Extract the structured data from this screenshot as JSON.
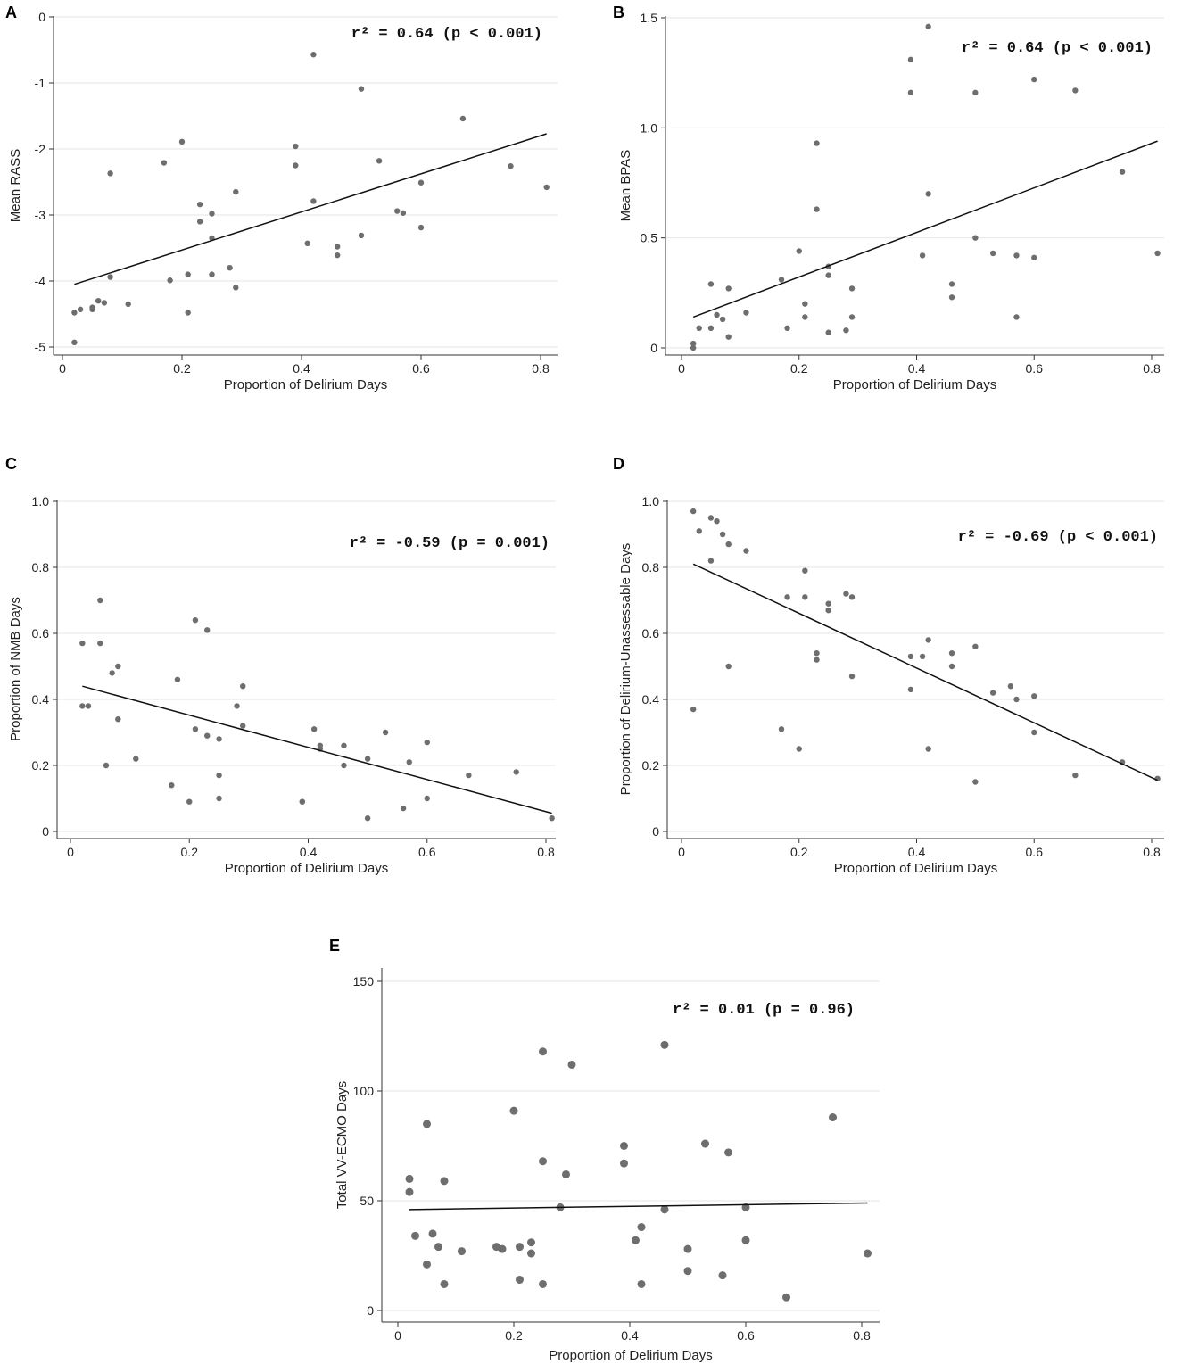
{
  "chart_data": [
    {
      "panel": "A",
      "type": "scatter",
      "xlabel": "Proportion of Delirium Days",
      "ylabel": "Mean RASS",
      "xlim": [
        0,
        0.8
      ],
      "ylim": [
        -5,
        0
      ],
      "xticks": [
        "0",
        "0.2",
        "0.4",
        "0.6",
        "0.8"
      ],
      "yticks": [
        "-5",
        "-4",
        "-3",
        "-2",
        "-1",
        "0"
      ],
      "annotation": "r² = 0.64 (p < 0.001)",
      "grid": true,
      "fit": {
        "x": [
          0.02,
          0.81
        ],
        "y": [
          -4.05,
          -1.77
        ]
      },
      "points": [
        [
          0.02,
          -4.93
        ],
        [
          0.02,
          -4.48
        ],
        [
          0.03,
          -4.43
        ],
        [
          0.05,
          -4.4
        ],
        [
          0.05,
          -4.43
        ],
        [
          0.06,
          -4.3
        ],
        [
          0.07,
          -4.33
        ],
        [
          0.08,
          -3.94
        ],
        [
          0.08,
          -2.37
        ],
        [
          0.11,
          -4.35
        ],
        [
          0.17,
          -2.21
        ],
        [
          0.18,
          -3.99
        ],
        [
          0.2,
          -1.89
        ],
        [
          0.21,
          -4.48
        ],
        [
          0.21,
          -3.9
        ],
        [
          0.23,
          -2.84
        ],
        [
          0.23,
          -3.1
        ],
        [
          0.25,
          -3.35
        ],
        [
          0.25,
          -2.98
        ],
        [
          0.25,
          -3.9
        ],
        [
          0.28,
          -3.8
        ],
        [
          0.29,
          -2.65
        ],
        [
          0.29,
          -4.1
        ],
        [
          0.39,
          -1.96
        ],
        [
          0.39,
          -2.25
        ],
        [
          0.41,
          -3.43
        ],
        [
          0.42,
          -0.57
        ],
        [
          0.42,
          -2.79
        ],
        [
          0.46,
          -3.48
        ],
        [
          0.46,
          -3.61
        ],
        [
          0.5,
          -1.09
        ],
        [
          0.5,
          -3.31
        ],
        [
          0.53,
          -2.18
        ],
        [
          0.56,
          -2.94
        ],
        [
          0.57,
          -2.97
        ],
        [
          0.6,
          -2.51
        ],
        [
          0.6,
          -3.19
        ],
        [
          0.67,
          -1.54
        ],
        [
          0.75,
          -2.26
        ],
        [
          0.81,
          -2.58
        ]
      ]
    },
    {
      "panel": "B",
      "type": "scatter",
      "xlabel": "Proportion of Delirium Days",
      "ylabel": "Mean BPAS",
      "xlim": [
        0,
        0.8
      ],
      "ylim": [
        0,
        1.5
      ],
      "xticks": [
        "0",
        "0.2",
        "0.4",
        "0.6",
        "0.8"
      ],
      "yticks": [
        "0",
        "0.5",
        "1.0",
        "1.5"
      ],
      "annotation": "r² = 0.64 (p < 0.001)",
      "grid": true,
      "fit": {
        "x": [
          0.02,
          0.81
        ],
        "y": [
          0.14,
          0.94
        ]
      },
      "points": [
        [
          0.02,
          0.02
        ],
        [
          0.02,
          0.0
        ],
        [
          0.03,
          0.09
        ],
        [
          0.05,
          0.09
        ],
        [
          0.05,
          0.29
        ],
        [
          0.06,
          0.15
        ],
        [
          0.07,
          0.13
        ],
        [
          0.08,
          0.27
        ],
        [
          0.08,
          0.05
        ],
        [
          0.11,
          0.16
        ],
        [
          0.17,
          0.31
        ],
        [
          0.18,
          0.09
        ],
        [
          0.2,
          0.44
        ],
        [
          0.21,
          0.2
        ],
        [
          0.21,
          0.14
        ],
        [
          0.23,
          0.63
        ],
        [
          0.23,
          0.93
        ],
        [
          0.25,
          0.37
        ],
        [
          0.25,
          0.33
        ],
        [
          0.25,
          0.07
        ],
        [
          0.28,
          0.08
        ],
        [
          0.29,
          0.27
        ],
        [
          0.29,
          0.14
        ],
        [
          0.39,
          1.31
        ],
        [
          0.39,
          1.16
        ],
        [
          0.41,
          0.42
        ],
        [
          0.42,
          1.46
        ],
        [
          0.42,
          0.7
        ],
        [
          0.46,
          0.29
        ],
        [
          0.46,
          0.23
        ],
        [
          0.5,
          1.16
        ],
        [
          0.5,
          0.5
        ],
        [
          0.53,
          0.43
        ],
        [
          0.57,
          0.14
        ],
        [
          0.57,
          0.42
        ],
        [
          0.6,
          1.22
        ],
        [
          0.6,
          0.41
        ],
        [
          0.67,
          1.17
        ],
        [
          0.75,
          0.8
        ],
        [
          0.81,
          0.43
        ]
      ]
    },
    {
      "panel": "C",
      "type": "scatter",
      "xlabel": "Proportion of Delirium Days",
      "ylabel": "Proportion of NMB Days",
      "xlim": [
        0,
        0.8
      ],
      "ylim": [
        0,
        1.0
      ],
      "xticks": [
        "0",
        "0.2",
        "0.4",
        "0.6",
        "0.8"
      ],
      "yticks": [
        "0",
        "0.2",
        "0.4",
        "0.6",
        "0.8",
        "1.0"
      ],
      "annotation": "r² = -0.59 (p = 0.001)",
      "grid": true,
      "fit": {
        "x": [
          0.02,
          0.81
        ],
        "y": [
          0.44,
          0.055
        ]
      },
      "points": [
        [
          0.02,
          0.57
        ],
        [
          0.02,
          0.38
        ],
        [
          0.03,
          0.38
        ],
        [
          0.05,
          0.7
        ],
        [
          0.05,
          0.57
        ],
        [
          0.06,
          0.2
        ],
        [
          0.07,
          0.48
        ],
        [
          0.08,
          0.5
        ],
        [
          0.08,
          0.34
        ],
        [
          0.11,
          0.22
        ],
        [
          0.17,
          0.14
        ],
        [
          0.18,
          0.46
        ],
        [
          0.2,
          0.09
        ],
        [
          0.21,
          0.31
        ],
        [
          0.21,
          0.64
        ],
        [
          0.23,
          0.29
        ],
        [
          0.23,
          0.61
        ],
        [
          0.25,
          0.28
        ],
        [
          0.25,
          0.17
        ],
        [
          0.25,
          0.1
        ],
        [
          0.28,
          0.38
        ],
        [
          0.29,
          0.32
        ],
        [
          0.29,
          0.44
        ],
        [
          0.39,
          0.09
        ],
        [
          0.39,
          0.09
        ],
        [
          0.41,
          0.31
        ],
        [
          0.42,
          0.25
        ],
        [
          0.42,
          0.26
        ],
        [
          0.46,
          0.26
        ],
        [
          0.46,
          0.2
        ],
        [
          0.5,
          0.22
        ],
        [
          0.5,
          0.04
        ],
        [
          0.53,
          0.3
        ],
        [
          0.56,
          0.07
        ],
        [
          0.57,
          0.21
        ],
        [
          0.6,
          0.27
        ],
        [
          0.6,
          0.1
        ],
        [
          0.67,
          0.17
        ],
        [
          0.75,
          0.18
        ],
        [
          0.81,
          0.04
        ]
      ]
    },
    {
      "panel": "D",
      "type": "scatter",
      "xlabel": "Proportion of Delirium Days",
      "ylabel": "Proportion of Delirium-Unassessable Days",
      "xlim": [
        0,
        0.8
      ],
      "ylim": [
        0,
        1.0
      ],
      "xticks": [
        "0",
        "0.2",
        "0.4",
        "0.6",
        "0.8"
      ],
      "yticks": [
        "0",
        "0.2",
        "0.4",
        "0.6",
        "0.8",
        "1.0"
      ],
      "annotation": "r² = -0.69 (p < 0.001)",
      "grid": true,
      "fit": {
        "x": [
          0.02,
          0.81
        ],
        "y": [
          0.81,
          0.155
        ]
      },
      "points": [
        [
          0.02,
          0.97
        ],
        [
          0.02,
          0.37
        ],
        [
          0.03,
          0.91
        ],
        [
          0.05,
          0.95
        ],
        [
          0.05,
          0.82
        ],
        [
          0.06,
          0.94
        ],
        [
          0.07,
          0.9
        ],
        [
          0.08,
          0.87
        ],
        [
          0.08,
          0.5
        ],
        [
          0.11,
          0.85
        ],
        [
          0.17,
          0.31
        ],
        [
          0.18,
          0.71
        ],
        [
          0.2,
          0.25
        ],
        [
          0.21,
          0.79
        ],
        [
          0.21,
          0.71
        ],
        [
          0.23,
          0.52
        ],
        [
          0.23,
          0.54
        ],
        [
          0.25,
          0.69
        ],
        [
          0.25,
          0.67
        ],
        [
          0.25,
          0.67
        ],
        [
          0.28,
          0.72
        ],
        [
          0.29,
          0.47
        ],
        [
          0.29,
          0.71
        ],
        [
          0.39,
          0.53
        ],
        [
          0.39,
          0.43
        ],
        [
          0.41,
          0.53
        ],
        [
          0.42,
          0.58
        ],
        [
          0.42,
          0.25
        ],
        [
          0.46,
          0.54
        ],
        [
          0.46,
          0.5
        ],
        [
          0.5,
          0.56
        ],
        [
          0.5,
          0.15
        ],
        [
          0.53,
          0.42
        ],
        [
          0.56,
          0.44
        ],
        [
          0.57,
          0.4
        ],
        [
          0.6,
          0.41
        ],
        [
          0.6,
          0.3
        ],
        [
          0.67,
          0.17
        ],
        [
          0.75,
          0.21
        ],
        [
          0.81,
          0.16
        ]
      ]
    },
    {
      "panel": "E",
      "type": "scatter",
      "xlabel": "Proportion of Delirium Days",
      "ylabel": "Total VV-ECMO Days",
      "xlim": [
        0,
        0.8
      ],
      "ylim": [
        0,
        150
      ],
      "xticks": [
        "0",
        "0.2",
        "0.4",
        "0.6",
        "0.8"
      ],
      "yticks": [
        "0",
        "50",
        "100",
        "150"
      ],
      "annotation": "r² = 0.01 (p = 0.96)",
      "grid": true,
      "fit": {
        "x": [
          0.02,
          0.81
        ],
        "y": [
          46,
          49
        ]
      },
      "points": [
        [
          0.02,
          60
        ],
        [
          0.02,
          54
        ],
        [
          0.03,
          34
        ],
        [
          0.05,
          85
        ],
        [
          0.05,
          21
        ],
        [
          0.06,
          35
        ],
        [
          0.07,
          29
        ],
        [
          0.08,
          59
        ],
        [
          0.08,
          12
        ],
        [
          0.11,
          27
        ],
        [
          0.17,
          29
        ],
        [
          0.18,
          28
        ],
        [
          0.2,
          91
        ],
        [
          0.21,
          29
        ],
        [
          0.21,
          14
        ],
        [
          0.23,
          31
        ],
        [
          0.23,
          26
        ],
        [
          0.25,
          118
        ],
        [
          0.25,
          68
        ],
        [
          0.25,
          12
        ],
        [
          0.28,
          47
        ],
        [
          0.29,
          62
        ],
        [
          0.3,
          112
        ],
        [
          0.39,
          75
        ],
        [
          0.39,
          67
        ],
        [
          0.41,
          32
        ],
        [
          0.42,
          38
        ],
        [
          0.42,
          12
        ],
        [
          0.46,
          121
        ],
        [
          0.46,
          46
        ],
        [
          0.5,
          28
        ],
        [
          0.5,
          18
        ],
        [
          0.53,
          76
        ],
        [
          0.56,
          16
        ],
        [
          0.57,
          72
        ],
        [
          0.6,
          47
        ],
        [
          0.6,
          32
        ],
        [
          0.67,
          6
        ],
        [
          0.75,
          88
        ],
        [
          0.81,
          26
        ]
      ]
    }
  ]
}
